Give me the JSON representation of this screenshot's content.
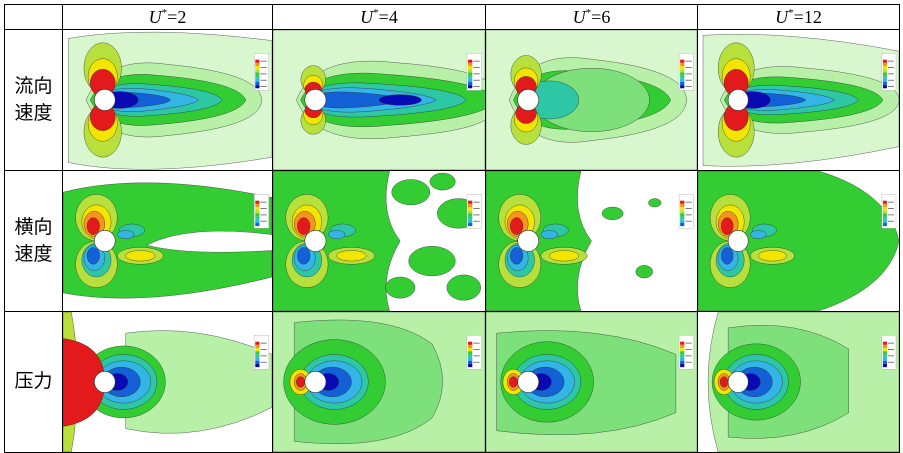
{
  "columns": [
    {
      "symbol": "U",
      "sup": "*",
      "eq": "=2"
    },
    {
      "symbol": "U",
      "sup": "*",
      "eq": "=4"
    },
    {
      "symbol": "U",
      "sup": "*",
      "eq": "=6"
    },
    {
      "symbol": "U",
      "sup": "*",
      "eq": "=12"
    }
  ],
  "rows": [
    {
      "label": "流向速度",
      "label_lines": [
        "流向",
        "速度"
      ],
      "field": "streamwise",
      "legend_title": "x-velocity"
    },
    {
      "label": "横向速度",
      "label_lines": [
        "横向",
        "速度"
      ],
      "field": "transverse",
      "legend_title": "y-velocity"
    },
    {
      "label": "压力",
      "label_lines": [
        "压力"
      ],
      "field": "pressure",
      "legend_title": "pressure"
    }
  ],
  "colors": {
    "red": "#e31a1c",
    "orange": "#f7941d",
    "yellow": "#f2e600",
    "yellowgreen": "#b8e03c",
    "lightgreen": "#b8f0a8",
    "paleGreen": "#d9f7cf",
    "green": "#33cc33",
    "teal": "#2ec7a6",
    "cyan": "#33b5e5",
    "blue": "#1460d6",
    "navy": "#0a0ab4",
    "cylinder": "#ffffff"
  }
}
